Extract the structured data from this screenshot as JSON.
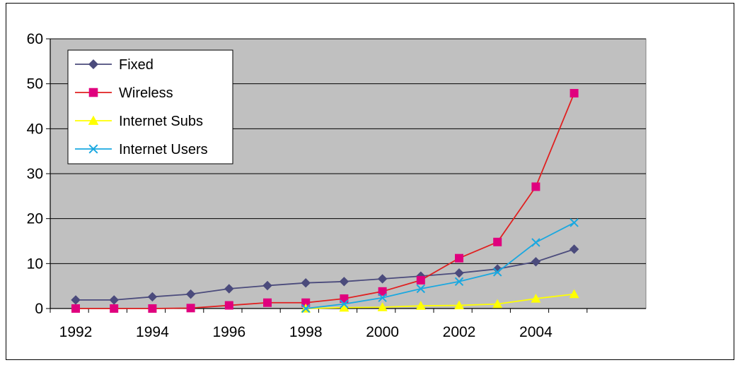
{
  "chart_data": {
    "type": "line",
    "title": "",
    "xlabel": "",
    "ylabel": "",
    "x": [
      1992,
      1993,
      1994,
      1995,
      1996,
      1997,
      1998,
      1999,
      2000,
      2001,
      2002,
      2003,
      2004,
      2005
    ],
    "x_tick_labels": [
      "1992",
      "1994",
      "1996",
      "1998",
      "2000",
      "2002",
      "2004"
    ],
    "y_tick_labels": [
      "0",
      "10",
      "20",
      "30",
      "40",
      "50",
      "60"
    ],
    "ylim": [
      0,
      60
    ],
    "grid": "horizontal",
    "plot_background": "#c0c0c0",
    "legend_position": "top-left",
    "series": [
      {
        "name": "Fixed",
        "color": "#4b4b7c",
        "marker": "diamond",
        "x": [
          1992,
          1993,
          1994,
          1995,
          1996,
          1997,
          1998,
          1999,
          2000,
          2001,
          2002,
          2003,
          2004,
          2005
        ],
        "values": [
          1.9,
          1.9,
          2.6,
          3.2,
          4.4,
          5.1,
          5.7,
          6.0,
          6.6,
          7.2,
          7.9,
          8.8,
          10.4,
          13.2
        ]
      },
      {
        "name": "Wireless",
        "color": "#e0007e",
        "line_color": "#e02020",
        "marker": "square",
        "x": [
          1992,
          1993,
          1994,
          1995,
          1996,
          1997,
          1998,
          1999,
          2000,
          2001,
          2002,
          2003,
          2004,
          2005
        ],
        "values": [
          0,
          0,
          0,
          0.1,
          0.7,
          1.3,
          1.3,
          2.2,
          3.8,
          6.3,
          11.2,
          14.8,
          27.1,
          47.9
        ]
      },
      {
        "name": "Internet Subs",
        "color": "#ffff00",
        "marker": "triangle",
        "x": [
          1998,
          1999,
          2000,
          2001,
          2002,
          2003,
          2004,
          2005
        ],
        "values": [
          0,
          0.2,
          0.3,
          0.6,
          0.7,
          1.0,
          2.2,
          3.2
        ]
      },
      {
        "name": "Internet Users",
        "color": "#1aa8e0",
        "marker": "x",
        "x": [
          1998,
          1999,
          2000,
          2001,
          2002,
          2003,
          2004,
          2005
        ],
        "values": [
          0,
          1.0,
          2.4,
          4.4,
          6.0,
          8.1,
          14.7,
          19.1
        ]
      }
    ]
  }
}
